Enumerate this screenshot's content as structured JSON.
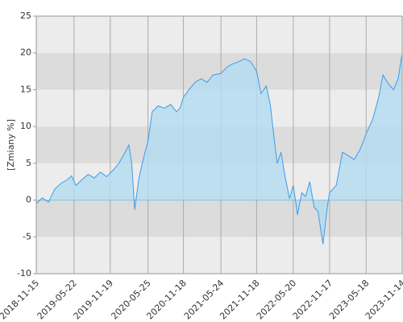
{
  "chart_data": {
    "type": "area",
    "y_label": "[Zmiany %]",
    "x": [
      "2018-11-15",
      "2018-12-15",
      "2019-01-15",
      "2019-02-15",
      "2019-03-20",
      "2019-04-20",
      "2019-05-10",
      "2019-06-01",
      "2019-07-01",
      "2019-08-01",
      "2019-09-01",
      "2019-10-01",
      "2019-11-01",
      "2019-12-01",
      "2020-01-01",
      "2020-02-01",
      "2020-02-20",
      "2020-03-05",
      "2020-03-20",
      "2020-04-10",
      "2020-05-01",
      "2020-05-25",
      "2020-06-15",
      "2020-07-15",
      "2020-08-15",
      "2020-09-15",
      "2020-10-15",
      "2020-11-01",
      "2020-11-18",
      "2020-12-15",
      "2021-01-15",
      "2021-02-15",
      "2021-03-15",
      "2021-04-15",
      "2021-05-24",
      "2021-06-20",
      "2021-07-20",
      "2021-08-20",
      "2021-09-20",
      "2021-10-20",
      "2021-11-18",
      "2021-12-10",
      "2022-01-05",
      "2022-01-25",
      "2022-02-15",
      "2022-03-01",
      "2022-03-20",
      "2022-04-10",
      "2022-05-01",
      "2022-05-20",
      "2022-06-10",
      "2022-07-01",
      "2022-07-20",
      "2022-08-10",
      "2022-09-01",
      "2022-09-20",
      "2022-10-15",
      "2022-11-05",
      "2022-11-17",
      "2022-12-20",
      "2023-01-20",
      "2023-02-20",
      "2023-03-20",
      "2023-04-20",
      "2023-05-18",
      "2023-06-20",
      "2023-07-20",
      "2023-08-10",
      "2023-09-01",
      "2023-10-01",
      "2023-10-25",
      "2023-11-13"
    ],
    "values": [
      -0.5,
      0.3,
      -0.3,
      1.5,
      2.3,
      2.8,
      3.3,
      2.0,
      2.8,
      3.5,
      3.0,
      3.8,
      3.2,
      4.0,
      5.0,
      6.5,
      7.5,
      5.0,
      -1.3,
      3.0,
      5.5,
      8.0,
      12.0,
      12.8,
      12.5,
      13.0,
      12.0,
      12.5,
      14.0,
      15.0,
      16.0,
      16.5,
      16.0,
      17.0,
      17.2,
      18.0,
      18.5,
      18.8,
      19.2,
      18.8,
      17.5,
      14.5,
      15.5,
      13.0,
      8.0,
      5.0,
      6.5,
      3.0,
      0.2,
      2.0,
      -2.0,
      1.0,
      0.5,
      2.5,
      -1.0,
      -1.5,
      -6.0,
      -1.0,
      1.0,
      2.0,
      6.5,
      6.0,
      5.5,
      7.0,
      9.0,
      11.0,
      14.0,
      17.0,
      16.0,
      15.0,
      16.5,
      19.8
    ],
    "line_color": "#3d9be9",
    "fill_color": "#b3dcf0",
    "xlim": [
      "2018-11-15",
      "2023-11-14"
    ],
    "xticks": [
      "2018-11-15",
      "2019-05-22",
      "2019-11-19",
      "2020-05-25",
      "2020-11-18",
      "2021-05-24",
      "2021-11-18",
      "2022-05-20",
      "2022-11-17",
      "2023-05-18",
      "2023-11-14"
    ],
    "ylim": [
      -10,
      25
    ],
    "yticks": [
      -10,
      -5,
      0,
      5,
      10,
      15,
      20,
      25
    ],
    "grid": true
  }
}
